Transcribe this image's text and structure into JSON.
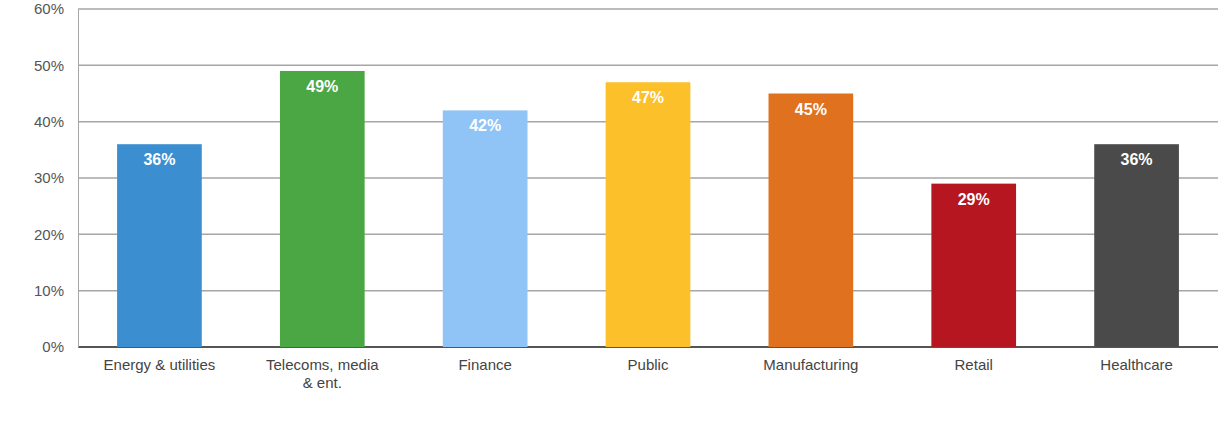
{
  "chart_data": {
    "type": "bar",
    "categories": [
      "Energy & utilities",
      "Telecoms, media & ent.",
      "Finance",
      "Public",
      "Manufacturing",
      "Retail",
      "Healthcare"
    ],
    "values": [
      36,
      49,
      42,
      47,
      45,
      29,
      36
    ],
    "value_labels": [
      "36%",
      "49%",
      "42%",
      "47%",
      "45%",
      "29%",
      "36%"
    ],
    "colors": [
      "#3b8fd1",
      "#4aa744",
      "#90c4f6",
      "#fbc02a",
      "#e0711f",
      "#b5161f",
      "#4a4a4a"
    ],
    "ylim": [
      0,
      60
    ],
    "yticks": [
      {
        "value": 0,
        "label": "0%"
      },
      {
        "value": 10,
        "label": "10%"
      },
      {
        "value": 20,
        "label": "20%"
      },
      {
        "value": 30,
        "label": "30%"
      },
      {
        "value": 40,
        "label": "40%"
      },
      {
        "value": 50,
        "label": "50%"
      },
      {
        "value": 60,
        "label": "60%"
      }
    ],
    "grid": true,
    "data_labels": true
  }
}
